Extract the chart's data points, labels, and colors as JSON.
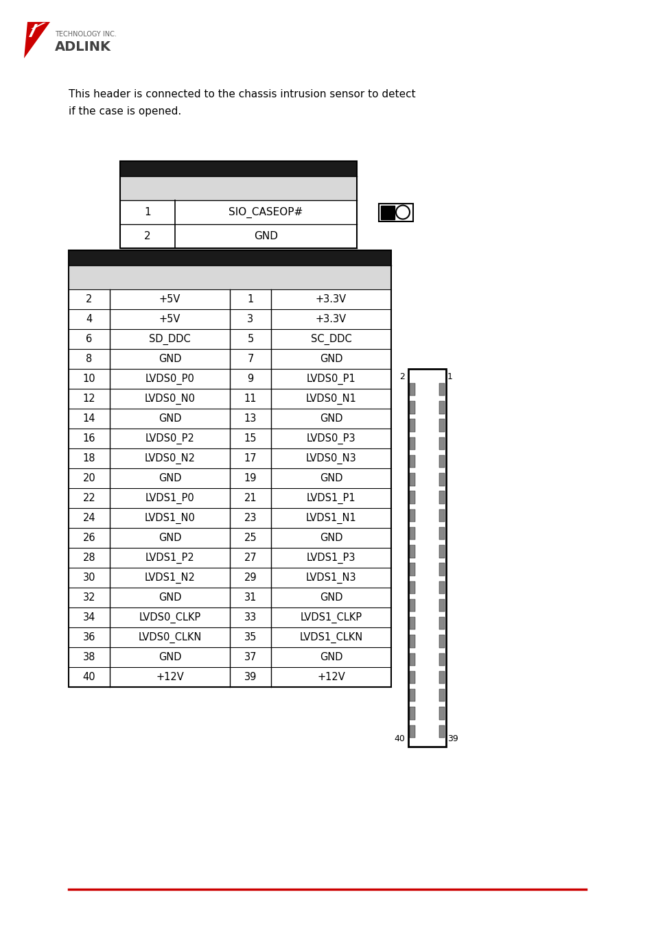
{
  "bg_color": "#ffffff",
  "text_color": "#000000",
  "red_color": "#cc0000",
  "gray_color": "#d0d0d0",
  "dark_gray": "#404040",
  "description_text": "This header is connected to the chassis intrusion sensor to detect\nif the case is opened.",
  "table1_header": [
    "",
    ""
  ],
  "table1_rows": [
    [
      "1",
      "SIO_CASEOP#"
    ],
    [
      "2",
      "GND"
    ]
  ],
  "table2_rows": [
    [
      "2",
      "+5V",
      "1",
      "+3.3V"
    ],
    [
      "4",
      "+5V",
      "3",
      "+3.3V"
    ],
    [
      "6",
      "SD_DDC",
      "5",
      "SC_DDC"
    ],
    [
      "8",
      "GND",
      "7",
      "GND"
    ],
    [
      "10",
      "LVDS0_P0",
      "9",
      "LVDS0_P1"
    ],
    [
      "12",
      "LVDS0_N0",
      "11",
      "LVDS0_N1"
    ],
    [
      "14",
      "GND",
      "13",
      "GND"
    ],
    [
      "16",
      "LVDS0_P2",
      "15",
      "LVDS0_P3"
    ],
    [
      "18",
      "LVDS0_N2",
      "17",
      "LVDS0_N3"
    ],
    [
      "20",
      "GND",
      "19",
      "GND"
    ],
    [
      "22",
      "LVDS1_P0",
      "21",
      "LVDS1_P1"
    ],
    [
      "24",
      "LVDS1_N0",
      "23",
      "LVDS1_N1"
    ],
    [
      "26",
      "GND",
      "25",
      "GND"
    ],
    [
      "28",
      "LVDS1_P2",
      "27",
      "LVDS1_P3"
    ],
    [
      "30",
      "LVDS1_N2",
      "29",
      "LVDS1_N3"
    ],
    [
      "32",
      "GND",
      "31",
      "GND"
    ],
    [
      "34",
      "LVDS0_CLKP",
      "33",
      "LVDS1_CLKP"
    ],
    [
      "36",
      "LVDS0_CLKN",
      "35",
      "LVDS1_CLKN"
    ],
    [
      "38",
      "GND",
      "37",
      "GND"
    ],
    [
      "40",
      "+12V",
      "39",
      "+12V"
    ]
  ],
  "adlink_text": "ADLINK",
  "tech_text": "TECHNOLOGY INC.",
  "logo_red": "#cc0000",
  "logo_gray": "#808080",
  "font_size_body": 10,
  "font_size_table": 9.5,
  "font_family": "DejaVu Sans"
}
